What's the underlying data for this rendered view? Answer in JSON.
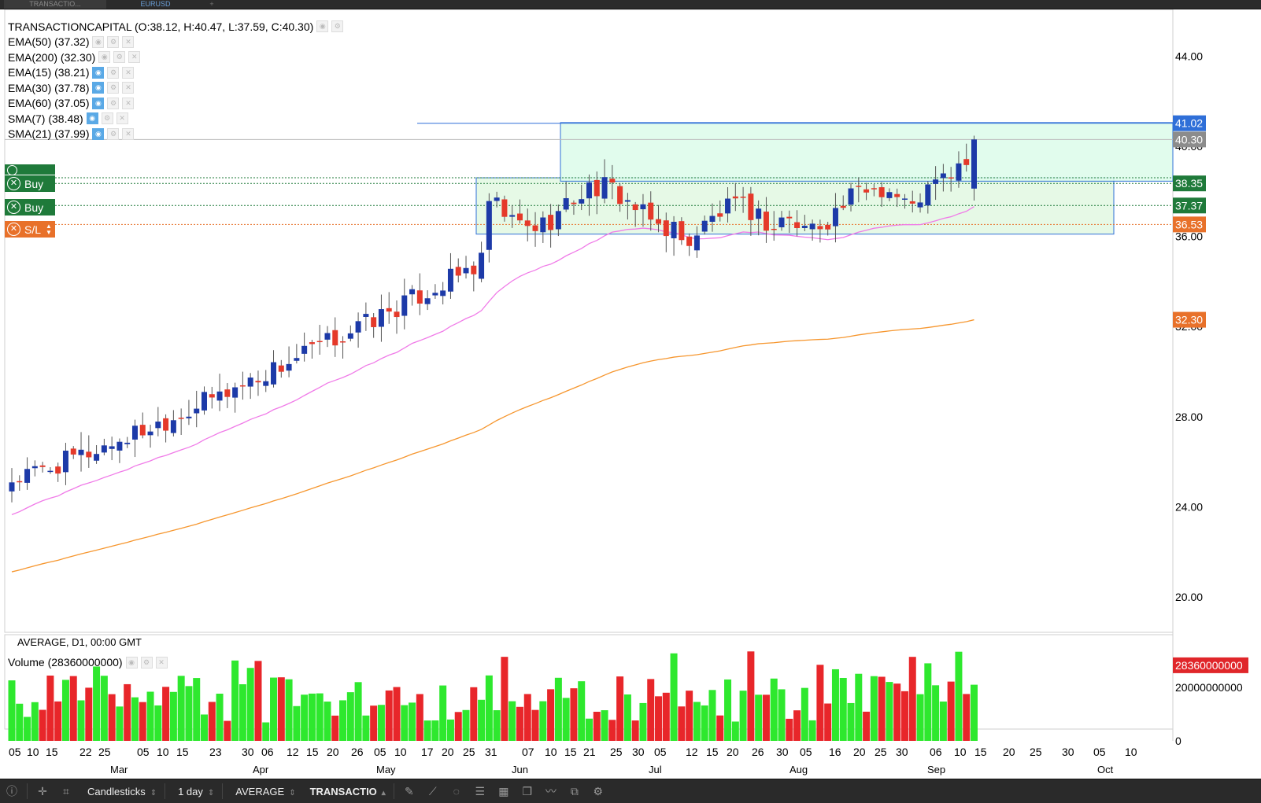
{
  "tabs": [
    "TRANSACTIO...",
    "EURUSD",
    "+"
  ],
  "legend": {
    "main": "TRANSACTIONCAPITAL (O:38.12, H:40.47, L:37.59, C:40.30)",
    "indicators": [
      {
        "label": "EMA(50) (37.32)",
        "visible": false
      },
      {
        "label": "EMA(200) (32.30)",
        "visible": false
      },
      {
        "label": "EMA(15) (38.21)",
        "visible": true
      },
      {
        "label": "EMA(30) (37.78)",
        "visible": true
      },
      {
        "label": "EMA(60) (37.05)",
        "visible": true
      },
      {
        "label": "SMA(7) (38.48)",
        "visible": true
      },
      {
        "label": "SMA(21) (37.99)",
        "visible": true
      }
    ]
  },
  "subtitle": "AVERAGE, D1, 00:00 GMT",
  "volume_label": "Volume (28360000000)",
  "trade_buttons": {
    "buy1": "Buy",
    "buy2": "Buy",
    "sl": "S/L"
  },
  "price_tags": [
    {
      "value": "41.02",
      "color": "#2f6fd8"
    },
    {
      "value": "40.30",
      "color": "#8c8c8c"
    },
    {
      "value": "38.35",
      "color": "#1f7a3a"
    },
    {
      "value": "37.37",
      "color": "#1f7a3a"
    },
    {
      "value": "36.53",
      "color": "#e8712a"
    },
    {
      "value": "32.30",
      "color": "#e8712a"
    }
  ],
  "volume_tag": {
    "value": "28360000000",
    "color": "#e0262a"
  },
  "chart_data": {
    "type": "candlestick",
    "y_ticks": [
      "44.00",
      "40.00",
      "36.00",
      "32.00",
      "28.00",
      "24.00",
      "20.00"
    ],
    "ylim": [
      18.5,
      46.0
    ],
    "volume_ticks": [
      "20000000000",
      "0"
    ],
    "x_day_ticks": [
      "05",
      "10",
      "15",
      "22",
      "25",
      "05",
      "10",
      "15",
      "23",
      "30",
      "06",
      "12",
      "15",
      "20",
      "26",
      "05",
      "10",
      "17",
      "20",
      "25",
      "31",
      "07",
      "10",
      "15",
      "21",
      "25",
      "30",
      "05",
      "12",
      "15",
      "20",
      "26",
      "30",
      "05",
      "16",
      "20",
      "25",
      "30",
      "06",
      "10",
      "15",
      "20",
      "25",
      "30",
      "05",
      "10"
    ],
    "x_month_ticks": [
      "Mar",
      "Apr",
      "May",
      "Jun",
      "Jul",
      "Aug",
      "Sep",
      "Oct"
    ],
    "range_box_green": {
      "y_low": 36.1,
      "y_high": 38.6
    },
    "target_box": {
      "y_low": 38.45,
      "y_high": 41.05
    },
    "horizontal_lines": {
      "target": 41.02,
      "current": 40.3,
      "buy1": 38.6,
      "buy2": 38.35,
      "buy3": 37.37,
      "stop_loss": 36.53
    },
    "ema_pink_final": 37.32,
    "ema_orange_final": 32.3,
    "candles_summary": {
      "first_close": 25.2,
      "pre_gap_close": 34.8,
      "gap_open": 37.0,
      "last": {
        "open": 38.12,
        "high": 40.47,
        "low": 37.59,
        "close": 40.3
      }
    }
  },
  "bottom_toolbar": {
    "chart_type": "Candlesticks",
    "timeframe": "1 day",
    "indicator": "AVERAGE",
    "symbol": "TRANSACTIO"
  }
}
